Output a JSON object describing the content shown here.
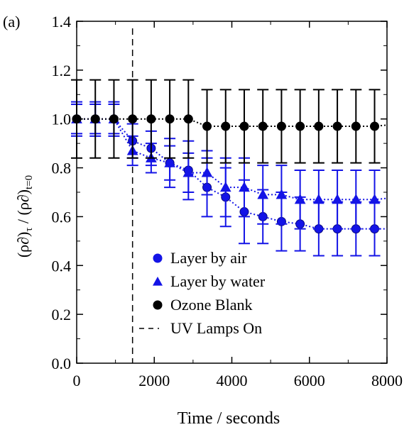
{
  "chart_data": {
    "type": "scatter",
    "panel_label": "(a)",
    "xlabel": "Time / seconds",
    "ylabel": "(ρ∂)",
    "ylabel_sub1": "τ",
    "ylabel_mid": " / (ρ∂)",
    "ylabel_sub2": "t=0",
    "xlim": [
      0,
      8000
    ],
    "ylim": [
      0.0,
      1.4
    ],
    "xticks": [
      0,
      2000,
      4000,
      6000,
      8000
    ],
    "xtick_labels": [
      "0",
      "2000",
      "4000",
      "6000",
      "8000"
    ],
    "yticks": [
      0.0,
      0.2,
      0.4,
      0.6,
      0.8,
      1.0,
      1.2,
      1.4
    ],
    "ytick_labels": [
      "0.0",
      "0.2",
      "0.4",
      "0.6",
      "0.8",
      "1.0",
      "1.2",
      "1.4"
    ],
    "grid": false,
    "legend_position": "bottom-center",
    "uv_lamps_on_x": 1440,
    "series": [
      {
        "name": "Layer  by air",
        "marker": "circle",
        "color": "#1414e6",
        "x": [
          0,
          480,
          960,
          1440,
          1920,
          2400,
          2880,
          3360,
          3840,
          4320,
          4800,
          5280,
          5760,
          6240,
          6720,
          7200,
          7680
        ],
        "y": [
          1.0,
          1.0,
          1.0,
          0.91,
          0.88,
          0.82,
          0.79,
          0.72,
          0.68,
          0.62,
          0.6,
          0.58,
          0.57,
          0.55,
          0.55,
          0.55,
          0.55
        ],
        "err": [
          0.07,
          0.07,
          0.07,
          0.07,
          0.07,
          0.1,
          0.12,
          0.12,
          0.12,
          0.13,
          0.11,
          0.12,
          0.11,
          0.11,
          0.11,
          0.11,
          0.11
        ],
        "fit_y_end": 0.55
      },
      {
        "name": "Layer by water",
        "marker": "triangle",
        "color": "#1414e6",
        "x": [
          0,
          480,
          960,
          1440,
          1920,
          2400,
          2880,
          3360,
          3840,
          4320,
          4800,
          5280,
          5760,
          6240,
          6720,
          7200,
          7680
        ],
        "y": [
          1.0,
          1.0,
          1.0,
          0.87,
          0.84,
          0.82,
          0.78,
          0.78,
          0.72,
          0.72,
          0.69,
          0.69,
          0.67,
          0.67,
          0.67,
          0.67,
          0.67
        ],
        "err": [
          0.06,
          0.06,
          0.06,
          0.06,
          0.06,
          0.07,
          0.08,
          0.09,
          0.12,
          0.12,
          0.12,
          0.12,
          0.12,
          0.12,
          0.12,
          0.12,
          0.12
        ],
        "fit_y_end": 0.675
      },
      {
        "name": "Ozone Blank",
        "marker": "circle",
        "color": "#000000",
        "x": [
          0,
          480,
          960,
          1440,
          1920,
          2400,
          2880,
          3360,
          3840,
          4320,
          4800,
          5280,
          5760,
          6240,
          6720,
          7200,
          7680
        ],
        "y": [
          1.0,
          1.0,
          1.0,
          1.0,
          1.0,
          1.0,
          1.0,
          0.97,
          0.97,
          0.97,
          0.97,
          0.97,
          0.97,
          0.97,
          0.97,
          0.97,
          0.97
        ],
        "err": [
          0.16,
          0.16,
          0.16,
          0.16,
          0.16,
          0.16,
          0.16,
          0.15,
          0.15,
          0.15,
          0.15,
          0.15,
          0.15,
          0.15,
          0.15,
          0.15,
          0.15
        ],
        "fit_y_end": 0.975
      }
    ],
    "legend": [
      {
        "label": "Layer  by air",
        "marker": "circle",
        "color": "#1414e6"
      },
      {
        "label": "Layer by water",
        "marker": "triangle",
        "color": "#1414e6"
      },
      {
        "label": "Ozone Blank",
        "marker": "circle",
        "color": "#000000"
      },
      {
        "label": "UV Lamps On",
        "marker": "dashed-line",
        "color": "#000000"
      }
    ]
  }
}
